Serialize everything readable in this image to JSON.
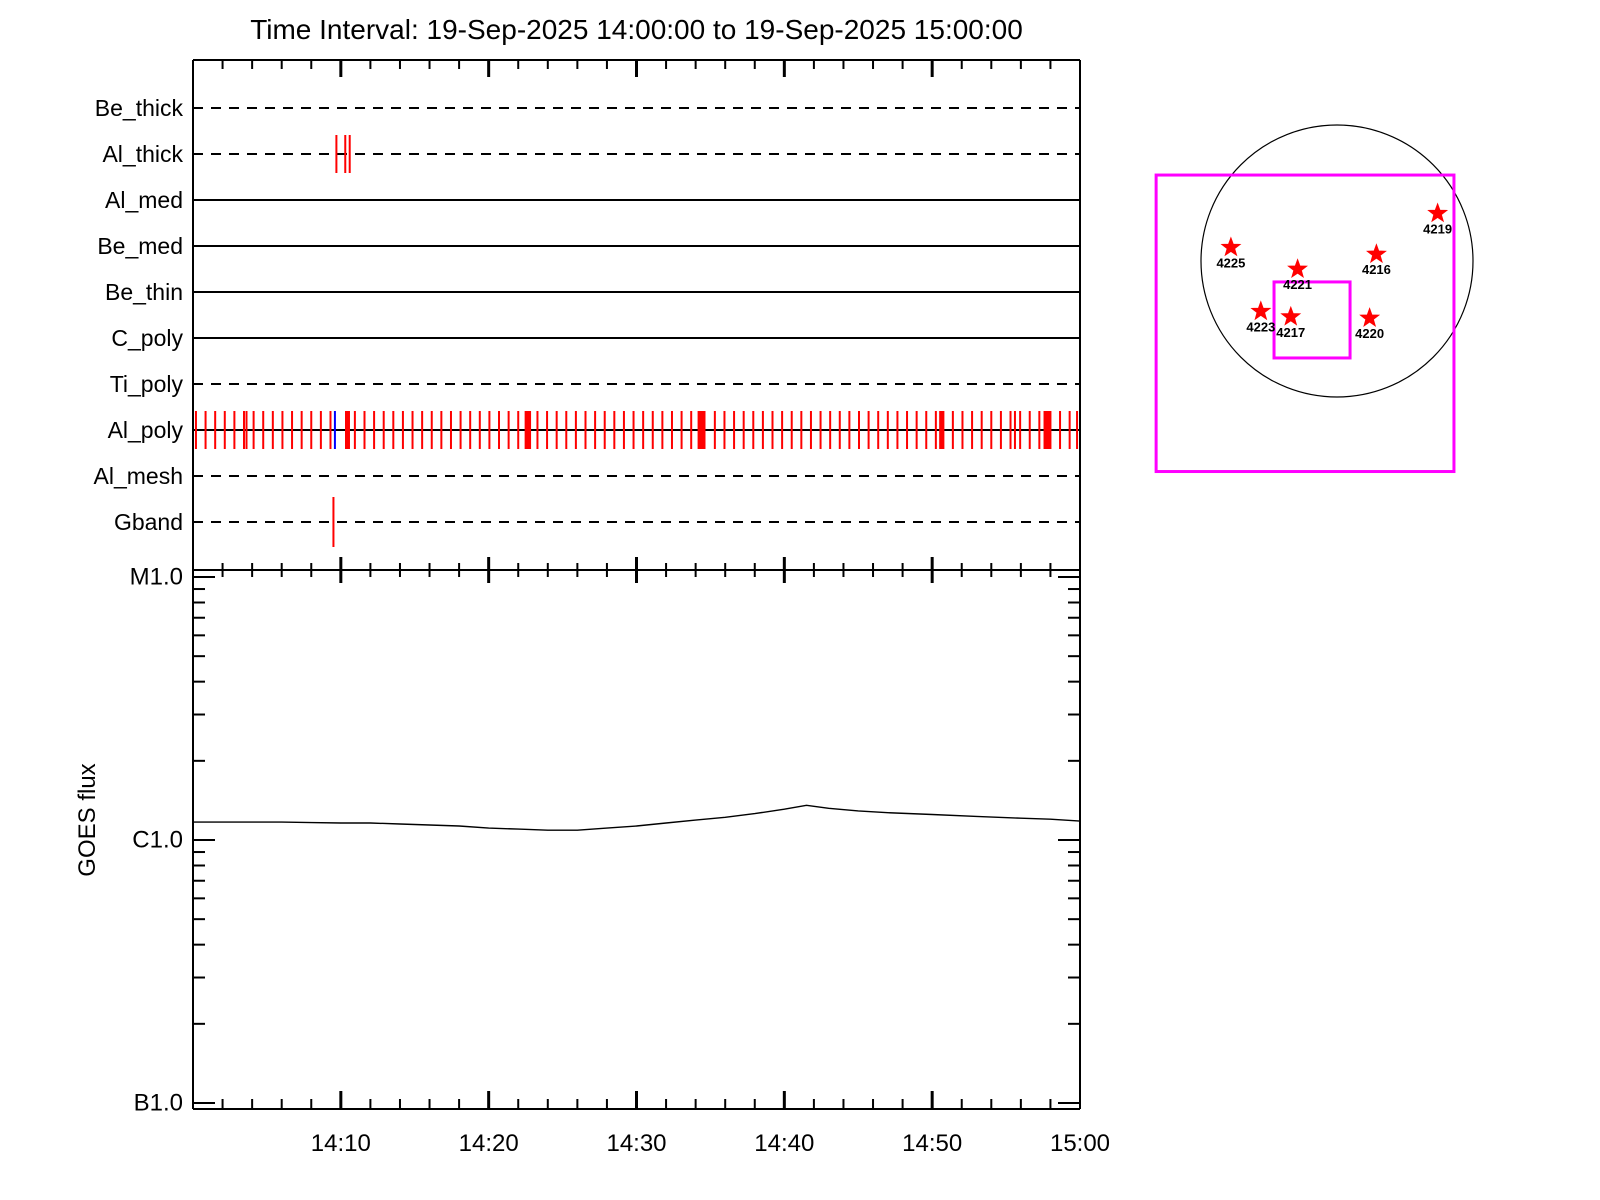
{
  "title": "Time Interval: 19-Sep-2025 14:00:00 to 19-Sep-2025 15:00:00",
  "colors": {
    "event_red": "#ff0000",
    "event_blue": "#0000ff",
    "fov_magenta": "#ff00ff",
    "line_black": "#000000",
    "background": "#ffffff"
  },
  "chart_data": [
    {
      "type": "timeline",
      "name": "xrt-filter-exposure-timeline",
      "x_start": "19-Sep-2025 14:00:00",
      "x_end": "19-Sep-2025 15:00:00",
      "duration_minutes": 60,
      "rows": [
        {
          "label": "Be_thick",
          "line": "dashed",
          "events_minutes": []
        },
        {
          "label": "Al_thick",
          "line": "dashed",
          "events_minutes": [
            9.7,
            10.3,
            10.6
          ]
        },
        {
          "label": "Al_med",
          "line": "solid",
          "events_minutes": []
        },
        {
          "label": "Be_med",
          "line": "solid",
          "events_minutes": []
        },
        {
          "label": "Be_thin",
          "line": "solid",
          "events_minutes": []
        },
        {
          "label": "C_poly",
          "line": "solid",
          "events_minutes": []
        },
        {
          "label": "Ti_poly",
          "line": "dashed",
          "events_minutes": []
        },
        {
          "label": "Al_poly",
          "line": "solid",
          "events_minutes": [
            0.2,
            0.85,
            1.5,
            2.15,
            2.8,
            3.45,
            3.62,
            4.1,
            4.75,
            5.4,
            6.05,
            6.7,
            7.35,
            8.0,
            8.65,
            9.3,
            10.45,
            10.95,
            11.6,
            12.25,
            12.9,
            13.55,
            14.2,
            14.85,
            15.5,
            16.15,
            16.8,
            17.45,
            18.1,
            18.75,
            19.4,
            20.05,
            20.7,
            21.35,
            22.0,
            22.5,
            22.65,
            22.8,
            23.3,
            23.95,
            24.6,
            25.25,
            25.9,
            26.55,
            27.2,
            27.85,
            28.5,
            29.15,
            29.8,
            30.45,
            31.1,
            31.75,
            32.4,
            33.05,
            33.7,
            34.2,
            34.4,
            34.6,
            35.3,
            35.95,
            36.6,
            37.25,
            37.9,
            38.55,
            39.2,
            39.85,
            40.5,
            41.15,
            41.8,
            42.45,
            43.1,
            43.75,
            44.4,
            45.05,
            45.7,
            46.35,
            47.0,
            47.65,
            48.3,
            48.95,
            49.6,
            50.25,
            50.55,
            50.75,
            51.4,
            52.05,
            52.7,
            53.35,
            54.0,
            54.65,
            55.3,
            55.6,
            55.95,
            56.6,
            57.25,
            57.6,
            57.8,
            58.0,
            58.65,
            59.3,
            59.8
          ],
          "wide_events_minutes": [
            10.45,
            22.65,
            34.4,
            50.65,
            57.8
          ],
          "blue_events_minutes": [
            9.6
          ]
        },
        {
          "label": "Al_mesh",
          "line": "dashed",
          "events_minutes": []
        },
        {
          "label": "Gband",
          "line": "dashed",
          "events_minutes": [
            9.5
          ],
          "tick_half_height": 25
        }
      ]
    },
    {
      "type": "line",
      "name": "goes-flux-plot",
      "ylabel": "GOES flux",
      "yscale": "log",
      "ylim_c_units": [
        0.095,
        10.6
      ],
      "yticks": [
        {
          "label": "M1.0",
          "value": 10
        },
        {
          "label": "C1.0",
          "value": 1
        },
        {
          "label": "B1.0",
          "value": 0.1
        }
      ],
      "y_minor_c_units": [
        9,
        8,
        7,
        6,
        5,
        4,
        3,
        2,
        0.9,
        0.8,
        0.7,
        0.6,
        0.5,
        0.4,
        0.3,
        0.2
      ],
      "xticks": [
        {
          "label": "14:10",
          "minute": 10
        },
        {
          "label": "14:20",
          "minute": 20
        },
        {
          "label": "14:30",
          "minute": 30
        },
        {
          "label": "14:40",
          "minute": 40
        },
        {
          "label": "14:50",
          "minute": 50
        },
        {
          "label": "15:00",
          "minute": 60
        }
      ],
      "x_minor_step_minutes": 2,
      "series": [
        {
          "name": "GOES flux",
          "x_minutes": [
            0,
            2,
            4,
            6,
            8,
            10,
            12,
            14,
            16,
            18,
            20,
            22,
            24,
            26,
            28,
            30,
            32,
            34,
            36,
            38,
            40,
            41.5,
            43,
            45,
            47,
            50,
            53,
            56,
            58,
            60
          ],
          "values_c_units": [
            1.17,
            1.17,
            1.17,
            1.17,
            1.165,
            1.16,
            1.16,
            1.15,
            1.14,
            1.13,
            1.11,
            1.1,
            1.09,
            1.09,
            1.11,
            1.13,
            1.16,
            1.19,
            1.22,
            1.26,
            1.31,
            1.355,
            1.32,
            1.29,
            1.27,
            1.25,
            1.23,
            1.21,
            1.2,
            1.18
          ]
        }
      ]
    },
    {
      "type": "map",
      "name": "solar-disk-active-region-map",
      "active_regions": [
        {
          "noaa": "4225",
          "x_r": -0.78,
          "y_r": -0.1
        },
        {
          "noaa": "4221",
          "x_r": -0.29,
          "y_r": 0.06
        },
        {
          "noaa": "4216",
          "x_r": 0.29,
          "y_r": -0.05
        },
        {
          "noaa": "4219",
          "x_r": 0.74,
          "y_r": -0.35
        },
        {
          "noaa": "4223",
          "x_r": -0.56,
          "y_r": 0.37
        },
        {
          "noaa": "4217",
          "x_r": -0.34,
          "y_r": 0.41
        },
        {
          "noaa": "4220",
          "x_r": 0.24,
          "y_r": 0.42
        }
      ],
      "fov_boxes": [
        {
          "name": "outer-fov",
          "x_r": -1.33,
          "y_r": -0.632,
          "w_r": 2.19,
          "h_r": 2.18
        },
        {
          "name": "inner-fov",
          "x_r": -0.463,
          "y_r": 0.154,
          "w_r": 0.559,
          "h_r": 0.559
        }
      ]
    }
  ]
}
